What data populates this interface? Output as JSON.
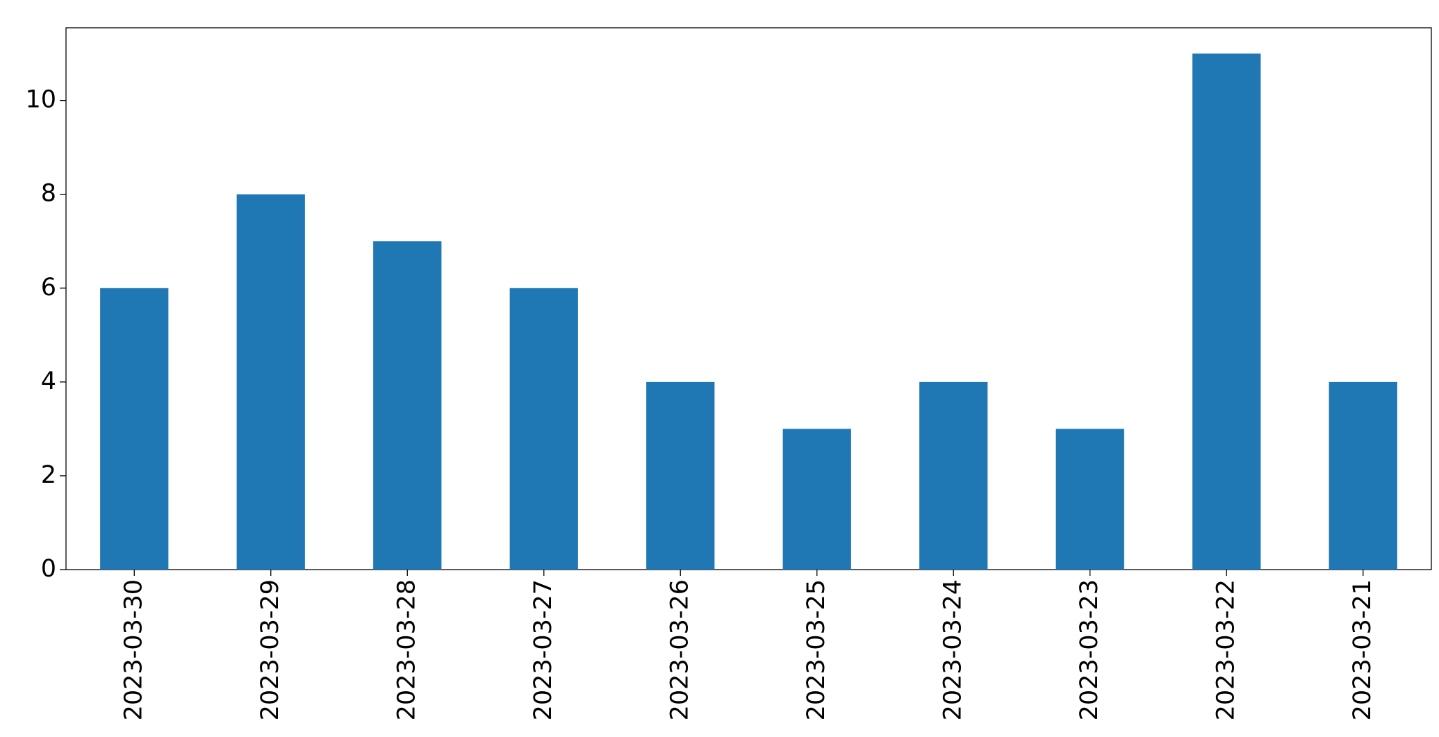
{
  "chart_data": {
    "type": "bar",
    "categories": [
      "2023-03-30",
      "2023-03-29",
      "2023-03-28",
      "2023-03-27",
      "2023-03-26",
      "2023-03-25",
      "2023-03-24",
      "2023-03-23",
      "2023-03-22",
      "2023-03-21"
    ],
    "values": [
      6,
      8,
      7,
      6,
      4,
      3,
      4,
      3,
      11,
      4
    ],
    "color": "#1f77b4",
    "ylim": [
      0,
      11.55
    ],
    "yticks": [
      0,
      2,
      4,
      6,
      8,
      10
    ],
    "grid": false
  }
}
